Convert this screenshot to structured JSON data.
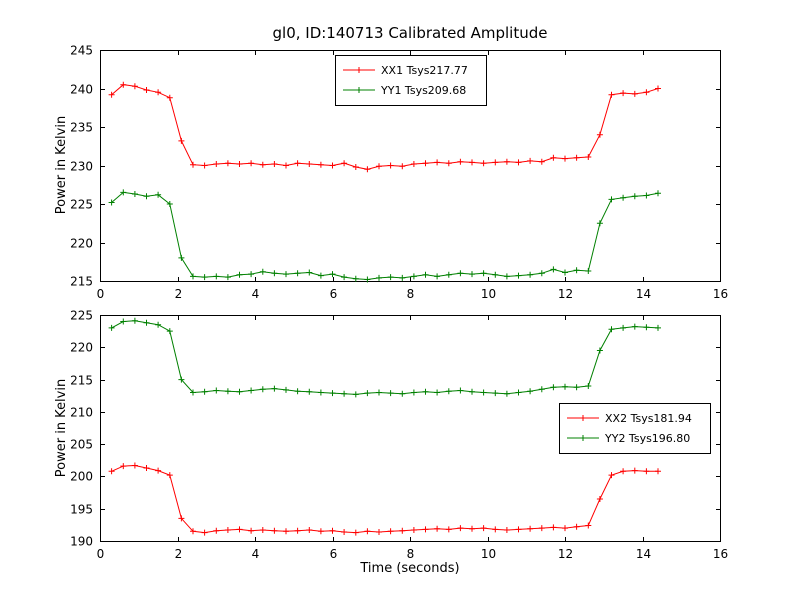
{
  "figure": {
    "background": "#ffffff",
    "frame_color": "#000000"
  },
  "chart_data": [
    {
      "type": "line",
      "title": "gl0, ID:140713 Calibrated Amplitude",
      "xlabel": "",
      "ylabel": "Power in Kelvin",
      "xlim": [
        0,
        16
      ],
      "ylim": [
        215,
        245
      ],
      "xticks": [
        0,
        2,
        4,
        6,
        8,
        10,
        12,
        14,
        16
      ],
      "yticks": [
        215,
        220,
        225,
        230,
        235,
        240,
        245
      ],
      "grid": false,
      "legend_loc": "upper center",
      "x": [
        0.3,
        0.6,
        0.9,
        1.2,
        1.5,
        1.8,
        2.1,
        2.4,
        2.7,
        3.0,
        3.3,
        3.6,
        3.9,
        4.2,
        4.5,
        4.8,
        5.1,
        5.4,
        5.7,
        6.0,
        6.3,
        6.6,
        6.9,
        7.2,
        7.5,
        7.8,
        8.1,
        8.4,
        8.7,
        9.0,
        9.3,
        9.6,
        9.9,
        10.2,
        10.5,
        10.8,
        11.1,
        11.4,
        11.7,
        12.0,
        12.3,
        12.6,
        12.9,
        13.2,
        13.5,
        13.8,
        14.1,
        14.4
      ],
      "series": [
        {
          "name": "XX1 Tsys217.77",
          "color": "#ff0000",
          "marker": "+",
          "values": [
            239.2,
            240.5,
            240.3,
            239.8,
            239.5,
            238.8,
            233.2,
            230.1,
            230.0,
            230.2,
            230.3,
            230.2,
            230.3,
            230.1,
            230.2,
            230.0,
            230.3,
            230.2,
            230.1,
            230.0,
            230.3,
            229.8,
            229.5,
            229.9,
            230.0,
            229.9,
            230.2,
            230.3,
            230.4,
            230.3,
            230.5,
            230.4,
            230.3,
            230.4,
            230.5,
            230.4,
            230.6,
            230.5,
            231.0,
            230.9,
            231.0,
            231.1,
            234.0,
            239.2,
            239.4,
            239.3,
            239.5,
            240.0
          ]
        },
        {
          "name": "YY1 Tsys209.68",
          "color": "#008000",
          "marker": "+",
          "values": [
            225.2,
            226.5,
            226.3,
            226.0,
            226.2,
            225.0,
            218.0,
            215.6,
            215.5,
            215.6,
            215.5,
            215.8,
            215.9,
            216.2,
            216.0,
            215.9,
            216.0,
            216.1,
            215.7,
            215.9,
            215.5,
            215.3,
            215.2,
            215.4,
            215.5,
            215.4,
            215.6,
            215.8,
            215.6,
            215.8,
            216.0,
            215.9,
            216.0,
            215.8,
            215.6,
            215.7,
            215.8,
            216.0,
            216.5,
            216.1,
            216.4,
            216.3,
            222.5,
            225.6,
            225.8,
            226.0,
            226.1,
            226.4
          ]
        }
      ]
    },
    {
      "type": "line",
      "title": "",
      "xlabel": "Time (seconds)",
      "ylabel": "Power in Kelvin",
      "xlim": [
        0,
        16
      ],
      "ylim": [
        190,
        225
      ],
      "xticks": [
        0,
        2,
        4,
        6,
        8,
        10,
        12,
        14,
        16
      ],
      "yticks": [
        190,
        195,
        200,
        205,
        210,
        215,
        220,
        225
      ],
      "grid": false,
      "legend_loc": "center right",
      "x": [
        0.3,
        0.6,
        0.9,
        1.2,
        1.5,
        1.8,
        2.1,
        2.4,
        2.7,
        3.0,
        3.3,
        3.6,
        3.9,
        4.2,
        4.5,
        4.8,
        5.1,
        5.4,
        5.7,
        6.0,
        6.3,
        6.6,
        6.9,
        7.2,
        7.5,
        7.8,
        8.1,
        8.4,
        8.7,
        9.0,
        9.3,
        9.6,
        9.9,
        10.2,
        10.5,
        10.8,
        11.1,
        11.4,
        11.7,
        12.0,
        12.3,
        12.6,
        12.9,
        13.2,
        13.5,
        13.8,
        14.1,
        14.4
      ],
      "series": [
        {
          "name": "XX2 Tsys181.94",
          "color": "#ff0000",
          "marker": "+",
          "values": [
            200.8,
            201.6,
            201.7,
            201.3,
            200.9,
            200.2,
            193.5,
            191.5,
            191.3,
            191.6,
            191.7,
            191.8,
            191.6,
            191.7,
            191.6,
            191.5,
            191.6,
            191.7,
            191.5,
            191.6,
            191.4,
            191.3,
            191.5,
            191.4,
            191.5,
            191.6,
            191.7,
            191.8,
            191.9,
            191.8,
            192.0,
            191.9,
            192.0,
            191.8,
            191.7,
            191.8,
            191.9,
            192.0,
            192.1,
            192.0,
            192.2,
            192.4,
            196.5,
            200.2,
            200.8,
            200.9,
            200.8,
            200.8
          ]
        },
        {
          "name": "YY2 Tsys196.80",
          "color": "#008000",
          "marker": "+",
          "values": [
            223.0,
            224.0,
            224.1,
            223.8,
            223.5,
            222.5,
            215.0,
            213.0,
            213.1,
            213.3,
            213.2,
            213.1,
            213.3,
            213.5,
            213.6,
            213.4,
            213.2,
            213.1,
            213.0,
            212.9,
            212.8,
            212.7,
            212.9,
            213.0,
            212.9,
            212.8,
            213.0,
            213.1,
            213.0,
            213.2,
            213.3,
            213.1,
            213.0,
            212.9,
            212.8,
            213.0,
            213.2,
            213.5,
            213.8,
            213.9,
            213.8,
            214.0,
            219.5,
            222.8,
            223.0,
            223.2,
            223.1,
            223.0
          ]
        }
      ]
    }
  ]
}
